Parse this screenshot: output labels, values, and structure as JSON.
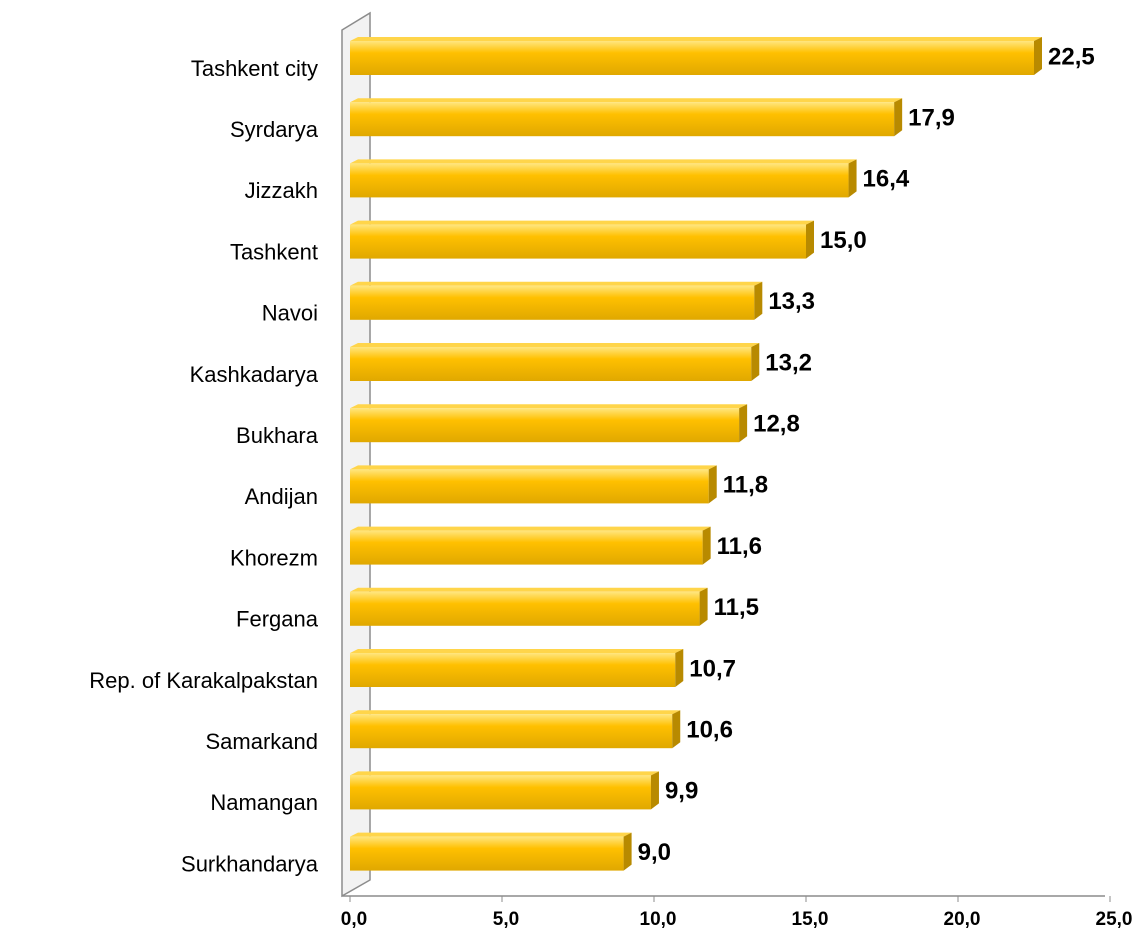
{
  "chart_data": {
    "type": "bar",
    "orientation": "horizontal",
    "categories": [
      "Tashkent city",
      "Syrdarya",
      "Jizzakh",
      "Tashkent",
      "Navoi",
      "Kashkadarya",
      "Bukhara",
      "Andijan",
      "Khorezm",
      "Fergana",
      "Rep. of Karakalpakstan",
      "Samarkand",
      "Namangan",
      "Surkhandarya"
    ],
    "values": [
      22.5,
      17.9,
      16.4,
      15.0,
      13.3,
      13.2,
      12.8,
      11.8,
      11.6,
      11.5,
      10.7,
      10.6,
      9.9,
      9.0
    ],
    "value_labels": [
      "22,5",
      "17,9",
      "16,4",
      "15,0",
      "13,3",
      "13,2",
      "12,8",
      "11,8",
      "11,6",
      "11,5",
      "10,7",
      "10,6",
      "9,9",
      "9,0"
    ],
    "color": "#ffc000",
    "xlim": [
      0,
      25
    ],
    "xticks": [
      {
        "value": 0,
        "label": "0,0"
      },
      {
        "value": 5,
        "label": "5,0"
      },
      {
        "value": 10,
        "label": "10,0"
      },
      {
        "value": 15,
        "label": "15,0"
      },
      {
        "value": 20,
        "label": "20,0"
      },
      {
        "value": 25,
        "label": "25,0"
      }
    ]
  }
}
